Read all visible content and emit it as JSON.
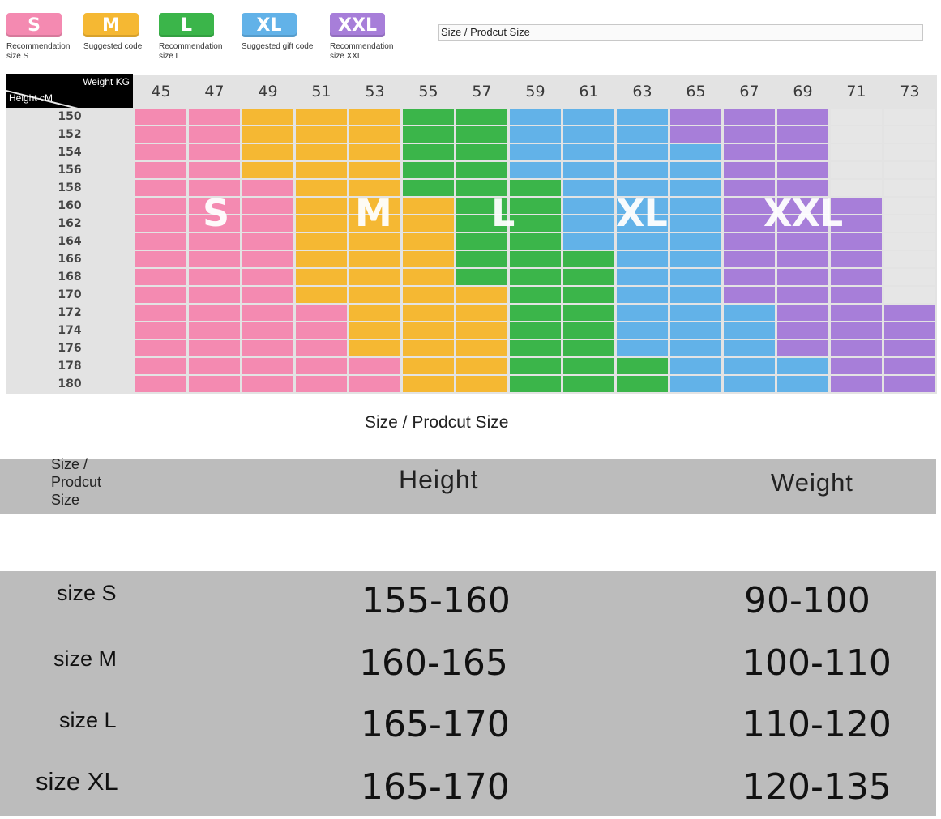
{
  "legend": [
    {
      "code": "S",
      "text": "Recommendation size S",
      "color": "#f48ab1"
    },
    {
      "code": "M",
      "text": "Suggested code",
      "color": "#f5b833"
    },
    {
      "code": "L",
      "text": "Recommendation size L",
      "color": "#3bb54a"
    },
    {
      "code": "XL",
      "text": "Suggested gift code",
      "color": "#62b2e8"
    },
    {
      "code": "XXL",
      "text": "Recommendation size XXL",
      "color": "#a77ed9"
    }
  ],
  "top_caption": "Size / Prodcut Size",
  "chart": {
    "weight_label": "Weight KG",
    "height_label": "Height cM",
    "weights": [
      45,
      47,
      49,
      51,
      53,
      55,
      57,
      59,
      61,
      63,
      65,
      67,
      69,
      71,
      73
    ],
    "heights": [
      150,
      152,
      154,
      156,
      158,
      160,
      162,
      164,
      166,
      168,
      170,
      172,
      174,
      176,
      178,
      180
    ],
    "size_labels": [
      "S",
      "M",
      "L",
      "XL",
      "XXL"
    ],
    "grid_sizes": [
      [
        "S",
        "S",
        "M",
        "M",
        "M",
        "L",
        "L",
        "XL",
        "XL",
        "XL",
        "XXL",
        "XXL",
        "XXL",
        "",
        ""
      ],
      [
        "S",
        "S",
        "M",
        "M",
        "M",
        "L",
        "L",
        "XL",
        "XL",
        "XL",
        "XXL",
        "XXL",
        "XXL",
        "",
        ""
      ],
      [
        "S",
        "S",
        "M",
        "M",
        "M",
        "L",
        "L",
        "XL",
        "XL",
        "XL",
        "XL",
        "XXL",
        "XXL",
        "",
        ""
      ],
      [
        "S",
        "S",
        "M",
        "M",
        "M",
        "L",
        "L",
        "XL",
        "XL",
        "XL",
        "XL",
        "XXL",
        "XXL",
        "",
        ""
      ],
      [
        "S",
        "S",
        "S",
        "M",
        "M",
        "L",
        "L",
        "L",
        "XL",
        "XL",
        "XL",
        "XXL",
        "XXL",
        "",
        ""
      ],
      [
        "S",
        "S",
        "S",
        "M",
        "M",
        "M",
        "L",
        "L",
        "XL",
        "XL",
        "XL",
        "XXL",
        "XXL",
        "XXL",
        ""
      ],
      [
        "S",
        "S",
        "S",
        "M",
        "M",
        "M",
        "L",
        "L",
        "XL",
        "XL",
        "XL",
        "XXL",
        "XXL",
        "XXL",
        ""
      ],
      [
        "S",
        "S",
        "S",
        "M",
        "M",
        "M",
        "L",
        "L",
        "XL",
        "XL",
        "XL",
        "XXL",
        "XXL",
        "XXL",
        ""
      ],
      [
        "S",
        "S",
        "S",
        "M",
        "M",
        "M",
        "L",
        "L",
        "L",
        "XL",
        "XL",
        "XXL",
        "XXL",
        "XXL",
        ""
      ],
      [
        "S",
        "S",
        "S",
        "M",
        "M",
        "M",
        "L",
        "L",
        "L",
        "XL",
        "XL",
        "XXL",
        "XXL",
        "XXL",
        ""
      ],
      [
        "S",
        "S",
        "S",
        "M",
        "M",
        "M",
        "M",
        "L",
        "L",
        "XL",
        "XL",
        "XXL",
        "XXL",
        "XXL",
        ""
      ],
      [
        "S",
        "S",
        "S",
        "S",
        "M",
        "M",
        "M",
        "L",
        "L",
        "XL",
        "XL",
        "XL",
        "XXL",
        "XXL",
        "XXL"
      ],
      [
        "S",
        "S",
        "S",
        "S",
        "M",
        "M",
        "M",
        "L",
        "L",
        "XL",
        "XL",
        "XL",
        "XXL",
        "XXL",
        "XXL"
      ],
      [
        "S",
        "S",
        "S",
        "S",
        "M",
        "M",
        "M",
        "L",
        "L",
        "XL",
        "XL",
        "XL",
        "XXL",
        "XXL",
        "XXL"
      ],
      [
        "S",
        "S",
        "S",
        "S",
        "S",
        "M",
        "M",
        "L",
        "L",
        "L",
        "XL",
        "XL",
        "XL",
        "XXL",
        "XXL"
      ],
      [
        "S",
        "S",
        "S",
        "S",
        "S",
        "M",
        "M",
        "L",
        "L",
        "L",
        "XL",
        "XL",
        "XL",
        "XXL",
        "XXL"
      ]
    ]
  },
  "mid_caption": "Size / Prodcut Size",
  "table": {
    "headers": {
      "size": "Size / Prodcut Size",
      "height": "Height",
      "weight": "Weight"
    },
    "rows": [
      {
        "size": "size S",
        "height": "155-160",
        "weight": "90-100"
      },
      {
        "size": "size M",
        "height": "160-165",
        "weight": "100-110"
      },
      {
        "size": "size L",
        "height": "165-170",
        "weight": "110-120"
      },
      {
        "size": "size XL",
        "height": "165-170",
        "weight": "120-135"
      }
    ]
  }
}
